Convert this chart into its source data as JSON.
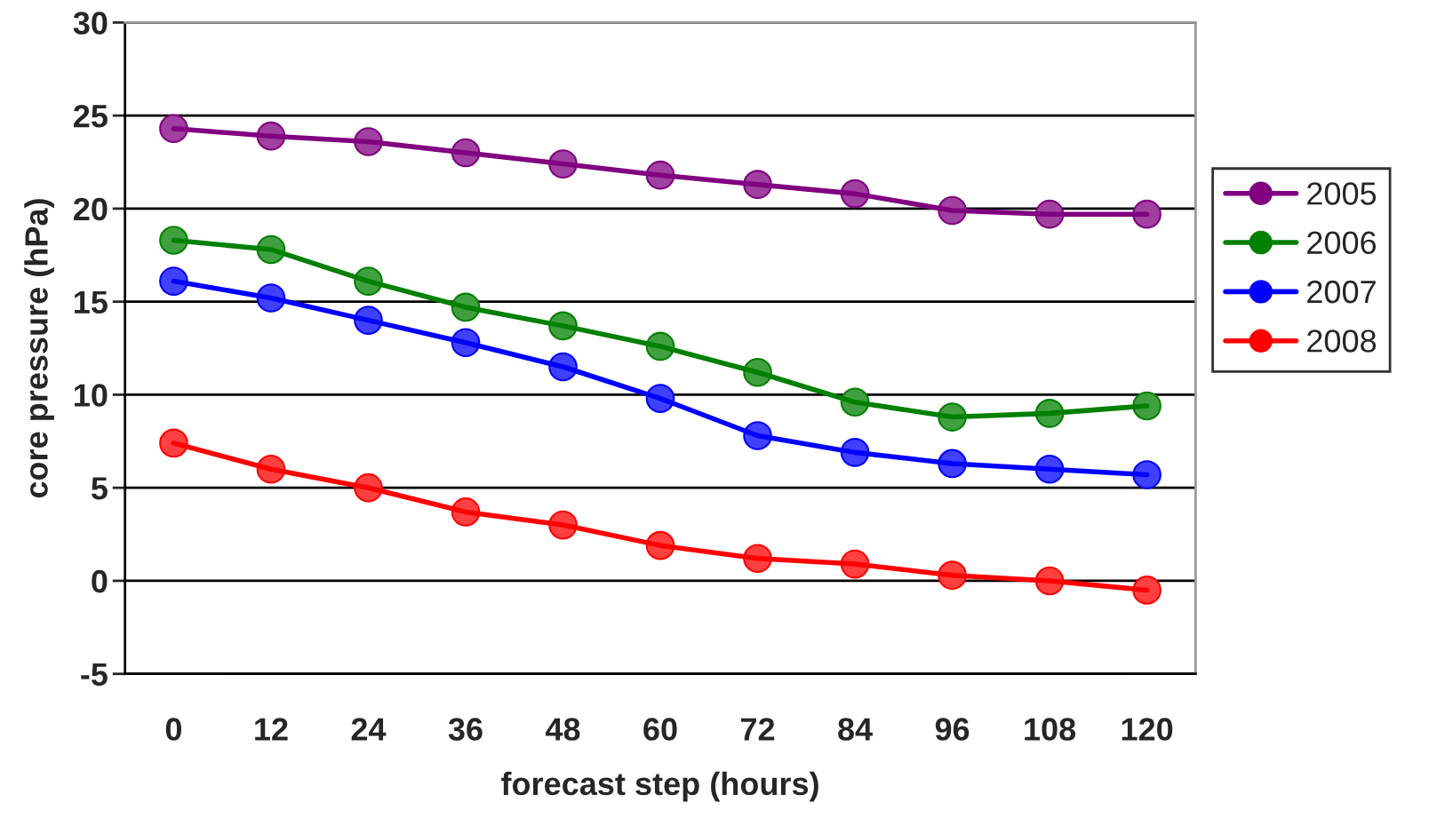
{
  "chart_data": {
    "type": "line",
    "xlabel": "forecast step (hours)",
    "ylabel": "core pressure (hPa)",
    "categories": [
      "0",
      "12",
      "24",
      "36",
      "48",
      "60",
      "72",
      "84",
      "96",
      "108",
      "120"
    ],
    "series": [
      {
        "name": "2005",
        "color": "#800080",
        "values": [
          24.3,
          23.9,
          23.6,
          23.0,
          22.4,
          21.8,
          21.3,
          20.8,
          19.9,
          19.7,
          19.7
        ]
      },
      {
        "name": "2006",
        "color": "#008000",
        "values": [
          18.3,
          17.8,
          16.1,
          14.7,
          13.7,
          12.6,
          11.2,
          9.6,
          8.8,
          9.0,
          9.4
        ]
      },
      {
        "name": "2007",
        "color": "#0000ff",
        "values": [
          16.1,
          15.2,
          14.0,
          12.8,
          11.5,
          9.8,
          7.8,
          6.9,
          6.3,
          6.0,
          5.7
        ]
      },
      {
        "name": "2008",
        "color": "#ff0000",
        "values": [
          7.4,
          6.0,
          5.0,
          3.7,
          3.0,
          1.9,
          1.2,
          0.9,
          0.3,
          0.0,
          -0.5
        ]
      }
    ],
    "ylim": [
      -5,
      30
    ],
    "yticks": [
      -5,
      0,
      5,
      10,
      15,
      20,
      25,
      30
    ],
    "grid": "y",
    "legend": "right",
    "marker": "circle",
    "line_style": "solid"
  }
}
